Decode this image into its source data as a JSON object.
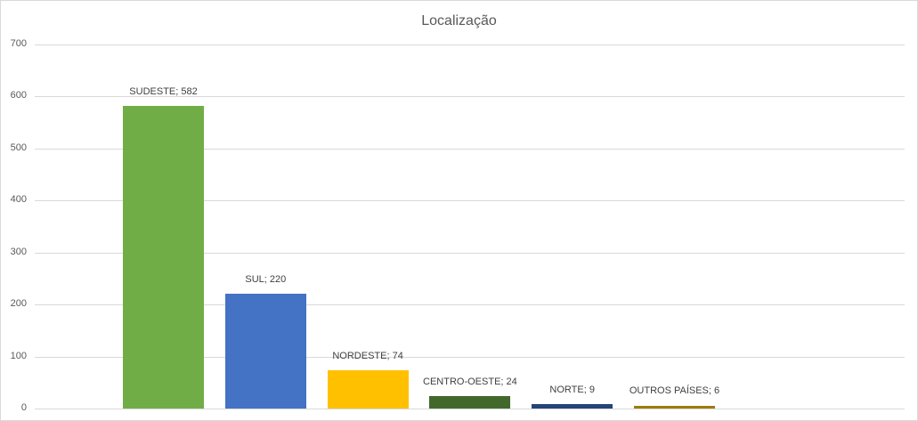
{
  "chart_data": {
    "type": "bar",
    "title": "Localização",
    "xlabel": "",
    "ylabel": "",
    "ylim": [
      0,
      700
    ],
    "yticks": [
      0,
      100,
      200,
      300,
      400,
      500,
      600,
      700
    ],
    "grid": true,
    "legend": null,
    "categories": [
      "SUDESTE",
      "SUL",
      "NORDESTE",
      "CENTRO-OESTE",
      "NORTE",
      "OUTROS PAÍSES"
    ],
    "values": [
      582,
      220,
      74,
      24,
      9,
      6
    ],
    "colors": [
      "#70ad47",
      "#4472c4",
      "#ffc000",
      "#43682b",
      "#264478",
      "#9e7c0c"
    ],
    "data_labels": [
      "SUDESTE; 582",
      "SUL; 220",
      "NORDESTE; 74",
      "CENTRO-OESTE; 24",
      "NORTE; 9",
      "OUTROS PAÍSES; 6"
    ]
  }
}
